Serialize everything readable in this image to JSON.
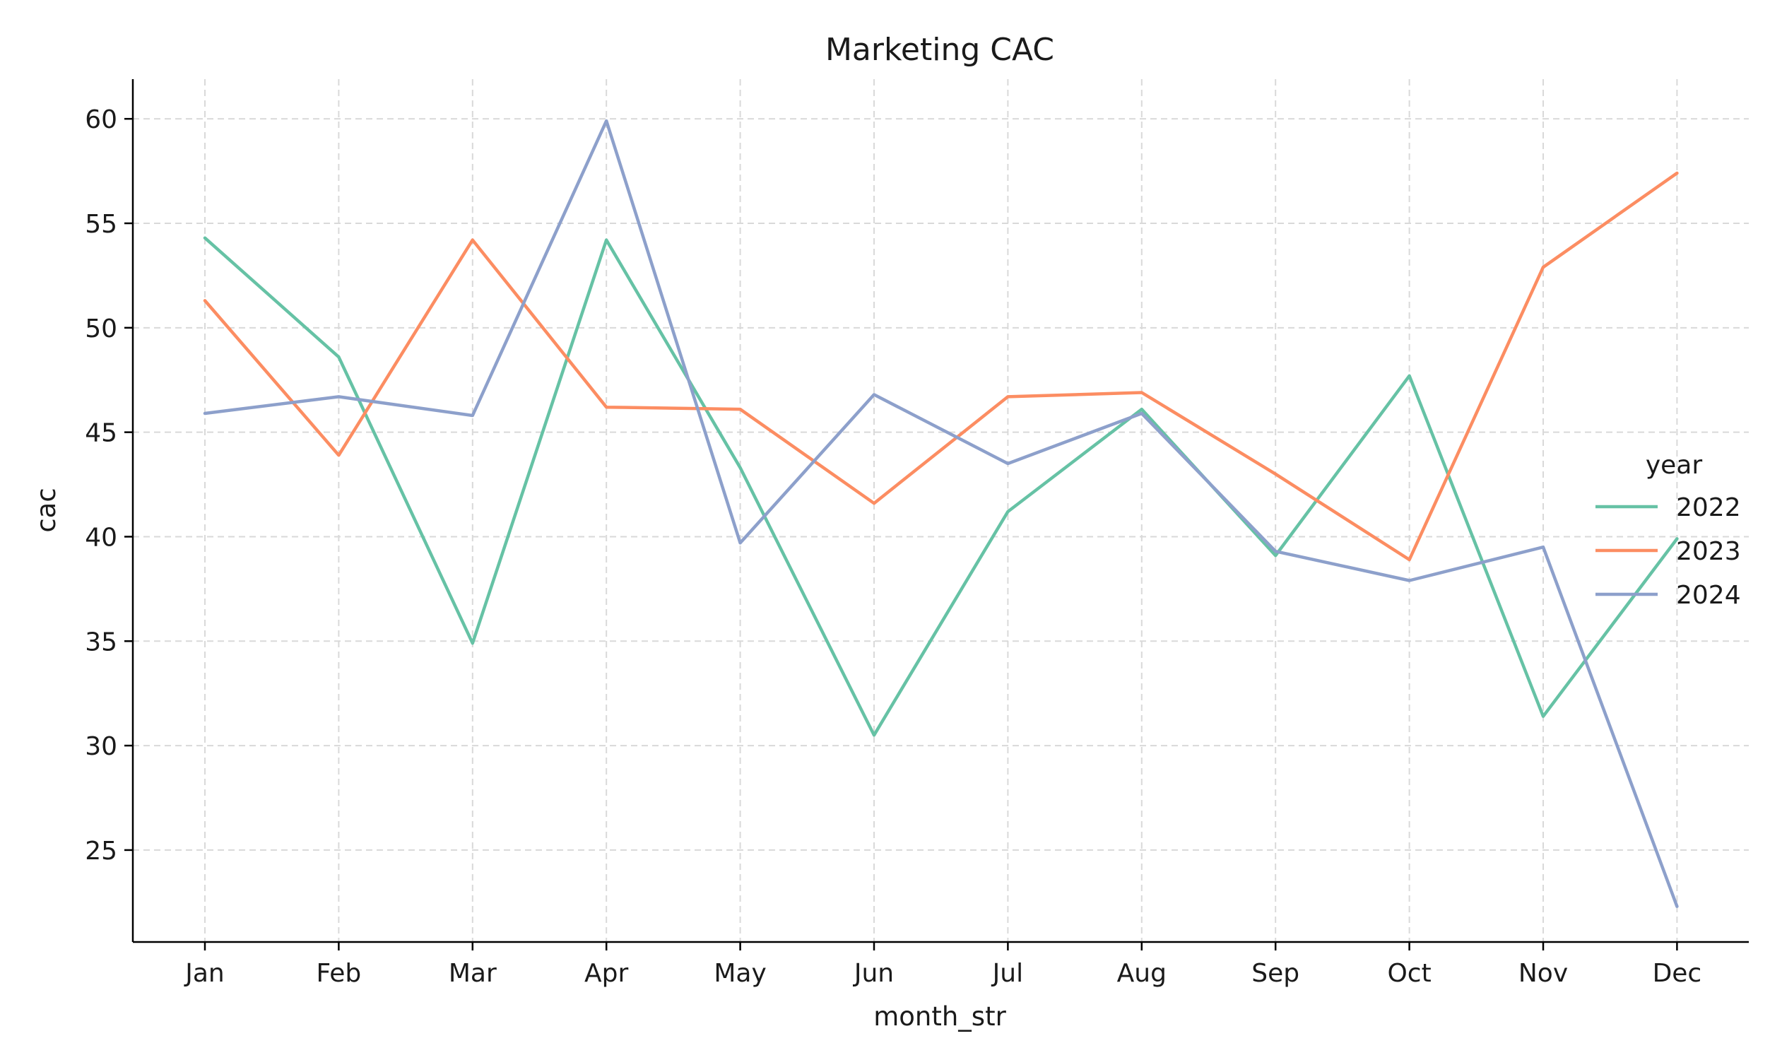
{
  "chart_data": {
    "type": "line",
    "title": "Marketing CAC",
    "xlabel": "month_str",
    "ylabel": "cac",
    "categories": [
      "Jan",
      "Feb",
      "Mar",
      "Apr",
      "May",
      "Jun",
      "Jul",
      "Aug",
      "Sep",
      "Oct",
      "Nov",
      "Dec"
    ],
    "y_ticks": [
      25,
      30,
      35,
      40,
      45,
      50,
      55,
      60
    ],
    "ylim": [
      20.6,
      61.9
    ],
    "grid": true,
    "legend": {
      "title": "year",
      "position": "right"
    },
    "series": [
      {
        "name": "2022",
        "color": "#66c2a5",
        "values": [
          54.3,
          48.6,
          34.9,
          54.2,
          43.3,
          30.5,
          41.2,
          46.1,
          39.1,
          47.7,
          31.4,
          39.9
        ]
      },
      {
        "name": "2023",
        "color": "#fc8d62",
        "values": [
          51.3,
          43.9,
          54.2,
          46.2,
          46.1,
          41.6,
          46.7,
          46.9,
          43.0,
          38.9,
          52.9,
          57.4
        ]
      },
      {
        "name": "2024",
        "color": "#8da0cb",
        "values": [
          45.9,
          46.7,
          45.8,
          59.9,
          39.7,
          46.8,
          43.5,
          45.9,
          39.3,
          37.9,
          39.5,
          22.3
        ]
      }
    ]
  }
}
